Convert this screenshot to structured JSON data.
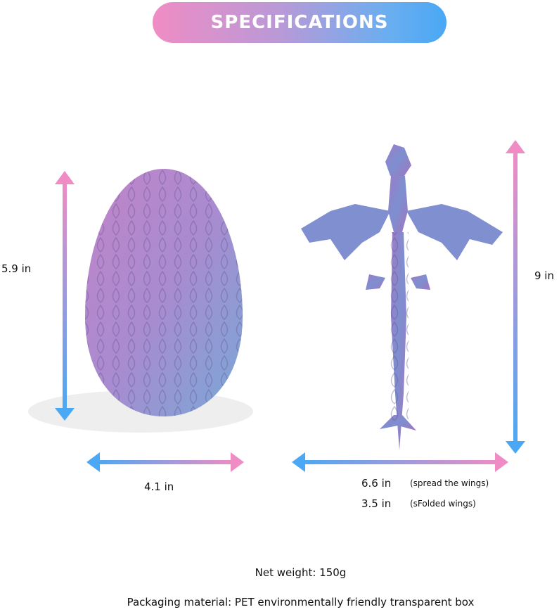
{
  "banner": {
    "title": "SPECIFICATIONS"
  },
  "egg": {
    "height": "5.9 in",
    "width": "4.1 in"
  },
  "dragon": {
    "height": "9 in",
    "spread_width": "6.6 in",
    "spread_note": "(spread the wings)",
    "folded_width": "3.5 in",
    "folded_note": "(sFolded wings)"
  },
  "footer": {
    "net_weight": "Net weight: 150g",
    "packaging": "Packaging material: PET environmentally friendly transparent box"
  },
  "colors": {
    "pink": "#f08cc4",
    "blue": "#4aa8f4",
    "product_purple": "#a77fc4",
    "product_blue": "#7fa6d8"
  }
}
